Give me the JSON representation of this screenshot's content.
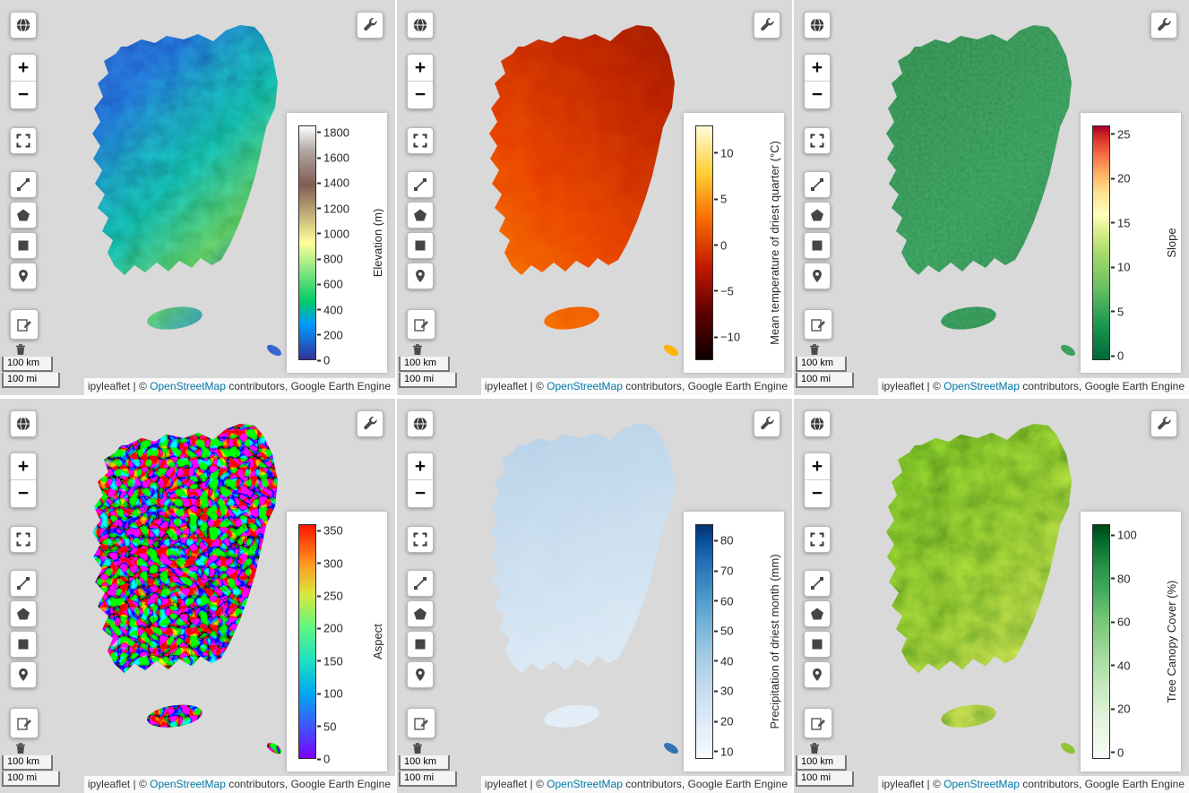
{
  "app": {
    "background_color": "#d9d9d9",
    "link_color": "#0078a8"
  },
  "controls": {
    "zoom_in": "+",
    "zoom_out": "−",
    "scale_km": "100 km",
    "scale_mi": "100 mi"
  },
  "attribution": {
    "prefix": "ipyleaflet | © ",
    "link_text": "OpenStreetMap",
    "suffix": " contributors, Google Earth Engine"
  },
  "panels": [
    {
      "id": "elevation",
      "colorbar": {
        "title": "Elevation (m)",
        "range": [
          0,
          1855
        ],
        "ticks": [
          {
            "label": "0",
            "value": 0
          },
          {
            "label": "200",
            "value": 200
          },
          {
            "label": "400",
            "value": 400
          },
          {
            "label": "600",
            "value": 600
          },
          {
            "label": "800",
            "value": 800
          },
          {
            "label": "1000",
            "value": 1000
          },
          {
            "label": "1200",
            "value": 1200
          },
          {
            "label": "1400",
            "value": 1400
          },
          {
            "label": "1600",
            "value": 1600
          },
          {
            "label": "1800",
            "value": 1800
          }
        ],
        "gradient": [
          [
            0,
            "#333399"
          ],
          [
            0.15,
            "#0099ff"
          ],
          [
            0.25,
            "#00cc66"
          ],
          [
            0.5,
            "#ffff99"
          ],
          [
            0.75,
            "#805c54"
          ],
          [
            0.9,
            "#b3a9a4"
          ],
          [
            1,
            "#ffffff"
          ]
        ]
      },
      "map_gradient": [
        [
          0,
          "#2a3fb0"
        ],
        [
          0.28,
          "#1c5ec9"
        ],
        [
          0.45,
          "#0fa08b"
        ],
        [
          0.58,
          "#4cb84f"
        ],
        [
          0.72,
          "#1c5ec9"
        ],
        [
          1,
          "#23339c"
        ]
      ]
    },
    {
      "id": "temperature-driest-quarter",
      "colorbar": {
        "title": "Mean temperature of driest quarter (°C)",
        "range": [
          -12.5,
          13
        ],
        "ticks": [
          {
            "label": "−10",
            "value": -10
          },
          {
            "label": "−5",
            "value": -5
          },
          {
            "label": "0",
            "value": 0
          },
          {
            "label": "5",
            "value": 5
          },
          {
            "label": "10",
            "value": 10
          }
        ],
        "gradient": [
          [
            0,
            "#0d0000"
          ],
          [
            0.2,
            "#600000"
          ],
          [
            0.4,
            "#c21a00"
          ],
          [
            0.6,
            "#f96b00"
          ],
          [
            0.8,
            "#ffcf33"
          ],
          [
            1,
            "#fffbda"
          ]
        ]
      },
      "map_gradient": [
        [
          0,
          "#6f0d00"
        ],
        [
          0.3,
          "#b81c00"
        ],
        [
          0.55,
          "#e83c00"
        ],
        [
          0.8,
          "#fb7a00"
        ],
        [
          1,
          "#ffc31f"
        ]
      ]
    },
    {
      "id": "slope",
      "colorbar": {
        "title": "Slope",
        "range": [
          -0.5,
          26
        ],
        "ticks": [
          {
            "label": "0",
            "value": 0
          },
          {
            "label": "5",
            "value": 5
          },
          {
            "label": "10",
            "value": 10
          },
          {
            "label": "15",
            "value": 15
          },
          {
            "label": "20",
            "value": 20
          },
          {
            "label": "25",
            "value": 25
          }
        ],
        "gradient": [
          [
            0,
            "#006837"
          ],
          [
            0.15,
            "#1a9850"
          ],
          [
            0.3,
            "#66bd63"
          ],
          [
            0.45,
            "#a6d96a"
          ],
          [
            0.55,
            "#d9ef8b"
          ],
          [
            0.62,
            "#ffffbf"
          ],
          [
            0.72,
            "#fee08b"
          ],
          [
            0.8,
            "#fdae61"
          ],
          [
            0.88,
            "#f46d43"
          ],
          [
            0.95,
            "#d73027"
          ],
          [
            1,
            "#a50026"
          ]
        ]
      },
      "map_gradient": [
        [
          0,
          "#267f3f"
        ],
        [
          0.5,
          "#2f9652"
        ],
        [
          1,
          "#1f7a3e"
        ]
      ]
    },
    {
      "id": "aspect",
      "colorbar": {
        "title": "Aspect",
        "range": [
          0,
          360
        ],
        "ticks": [
          {
            "label": "0",
            "value": 0
          },
          {
            "label": "50",
            "value": 50
          },
          {
            "label": "100",
            "value": 100
          },
          {
            "label": "150",
            "value": 150
          },
          {
            "label": "200",
            "value": 200
          },
          {
            "label": "250",
            "value": 250
          },
          {
            "label": "300",
            "value": 300
          },
          {
            "label": "350",
            "value": 350
          }
        ],
        "gradient": [
          [
            0,
            "#7c00ff"
          ],
          [
            0.14,
            "#3e58fb"
          ],
          [
            0.28,
            "#00aaef"
          ],
          [
            0.42,
            "#1fe0c0"
          ],
          [
            0.56,
            "#5ef683"
          ],
          [
            0.7,
            "#d8e93c"
          ],
          [
            0.83,
            "#ff9b1f"
          ],
          [
            1,
            "#ff1500"
          ]
        ]
      },
      "map_gradient": [
        [
          0,
          "#8000ff"
        ],
        [
          0.5,
          "#00c8a0"
        ],
        [
          1,
          "#ff4000"
        ]
      ]
    },
    {
      "id": "precipitation-driest-month",
      "colorbar": {
        "title": "Precipitation of driest month (mm)",
        "range": [
          7.5,
          85.5
        ],
        "ticks": [
          {
            "label": "10",
            "value": 10
          },
          {
            "label": "20",
            "value": 20
          },
          {
            "label": "30",
            "value": 30
          },
          {
            "label": "40",
            "value": 40
          },
          {
            "label": "50",
            "value": 50
          },
          {
            "label": "60",
            "value": 60
          },
          {
            "label": "70",
            "value": 70
          },
          {
            "label": "80",
            "value": 80
          }
        ],
        "gradient": [
          [
            0,
            "#f7fbff"
          ],
          [
            0.15,
            "#deebf7"
          ],
          [
            0.3,
            "#c6dbef"
          ],
          [
            0.45,
            "#9ecae1"
          ],
          [
            0.6,
            "#6baed6"
          ],
          [
            0.72,
            "#4292c6"
          ],
          [
            0.84,
            "#2171b5"
          ],
          [
            0.93,
            "#08519c"
          ],
          [
            1,
            "#08306b"
          ]
        ]
      },
      "map_gradient": [
        [
          0,
          "#aac9e4"
        ],
        [
          0.45,
          "#c8ddee"
        ],
        [
          1,
          "#e9f2fa"
        ]
      ]
    },
    {
      "id": "tree-canopy-cover",
      "colorbar": {
        "title": "Tree Canopy Cover (%)",
        "range": [
          -3,
          105
        ],
        "ticks": [
          {
            "label": "0",
            "value": 0
          },
          {
            "label": "20",
            "value": 20
          },
          {
            "label": "40",
            "value": 40
          },
          {
            "label": "60",
            "value": 60
          },
          {
            "label": "80",
            "value": 80
          },
          {
            "label": "100",
            "value": 100
          }
        ],
        "gradient": [
          [
            0,
            "#f7fcf5"
          ],
          [
            0.15,
            "#e5f5e0"
          ],
          [
            0.3,
            "#c7e9c0"
          ],
          [
            0.45,
            "#a1d99b"
          ],
          [
            0.6,
            "#74c476"
          ],
          [
            0.72,
            "#41ab5d"
          ],
          [
            0.84,
            "#238b45"
          ],
          [
            0.93,
            "#006d2c"
          ],
          [
            1,
            "#00441b"
          ]
        ]
      },
      "map_gradient": [
        [
          0,
          "#467f13"
        ],
        [
          0.45,
          "#6ba524"
        ],
        [
          0.75,
          "#8fbe3f"
        ],
        [
          1,
          "#b5d36a"
        ]
      ]
    }
  ]
}
